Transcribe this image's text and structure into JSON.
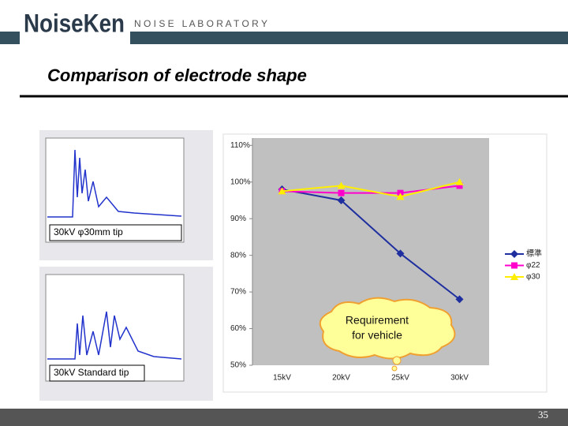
{
  "header": {
    "logo": "NoiseKen",
    "tagline": "N O I S E   L A B O R A T O R Y"
  },
  "title": "Comparison of electrode shape",
  "scope_labels": [
    "30kV  φ30mm tip",
    "30kV  Standard  tip"
  ],
  "callout": [
    "Requirement",
    "for vehicle"
  ],
  "page_number": "35",
  "chart_data": {
    "type": "line",
    "categories": [
      "15kV",
      "20kV",
      "25kV",
      "30kV"
    ],
    "series": [
      {
        "name": "標準",
        "color": "#1f2f9f",
        "marker": "diamond",
        "values": [
          98,
          95,
          80.5,
          68
        ]
      },
      {
        "name": "φ22",
        "color": "#ff00cc",
        "marker": "square",
        "values": [
          97.5,
          97,
          97,
          99
        ]
      },
      {
        "name": "φ30",
        "color": "#ffee00",
        "marker": "triangle",
        "values": [
          97.5,
          99,
          96,
          100
        ]
      }
    ],
    "ylim": [
      50,
      112
    ],
    "yticks": [
      {
        "value": 50,
        "label": "50%"
      },
      {
        "value": 60,
        "label": "60%"
      },
      {
        "value": 70,
        "label": "70%"
      },
      {
        "value": 80,
        "label": "80%"
      },
      {
        "value": 90,
        "label": "90%"
      },
      {
        "value": 100,
        "label": "100%"
      },
      {
        "value": 110,
        "label": "110%"
      }
    ],
    "grid": false,
    "legend": "right"
  }
}
